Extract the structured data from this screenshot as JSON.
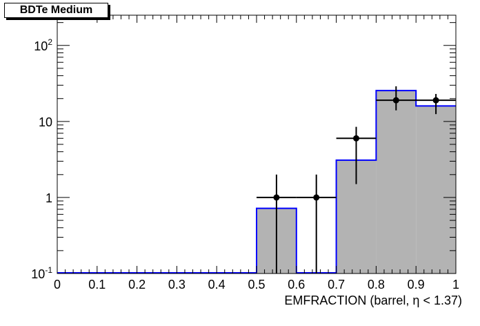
{
  "chart_data": {
    "type": "bar",
    "title": "BDTe Medium",
    "xlabel": "EMFRACTION (barrel,  η < 1.37)",
    "ylabel": "",
    "xlim": [
      0,
      1
    ],
    "ylim": [
      0.1,
      250
    ],
    "yscale": "log",
    "grid": false,
    "x_ticks": [
      "0",
      "0.1",
      "0.2",
      "0.3",
      "0.4",
      "0.5",
      "0.6",
      "0.7",
      "0.8",
      "0.9",
      "1"
    ],
    "y_ticks": [
      "10^-1",
      "1",
      "10",
      "10^2"
    ],
    "bin_edges": [
      0,
      0.1,
      0.2,
      0.3,
      0.4,
      0.5,
      0.6,
      0.7,
      0.8,
      0.9,
      1.0
    ],
    "series": [
      {
        "style": "filled-histogram",
        "fill": "#b3b3b3",
        "line": "#0000ff",
        "values": [
          0,
          0,
          0,
          0,
          0,
          0.72,
          0,
          3.1,
          25.5,
          16.0
        ]
      },
      {
        "style": "points-with-errors",
        "color": "#000000",
        "points": [
          {
            "x": 0.55,
            "y": 1.0,
            "ylo": 0.1,
            "yhi": 2.0
          },
          {
            "x": 0.65,
            "y": 1.0,
            "ylo": 0.1,
            "yhi": 2.0
          },
          {
            "x": 0.75,
            "y": 6.0,
            "ylo": 1.5,
            "yhi": 8.5
          },
          {
            "x": 0.85,
            "y": 19.0,
            "ylo": 14.0,
            "yhi": 29.0
          },
          {
            "x": 0.95,
            "y": 19.0,
            "ylo": 12.5,
            "yhi": 23.0
          }
        ]
      }
    ]
  }
}
